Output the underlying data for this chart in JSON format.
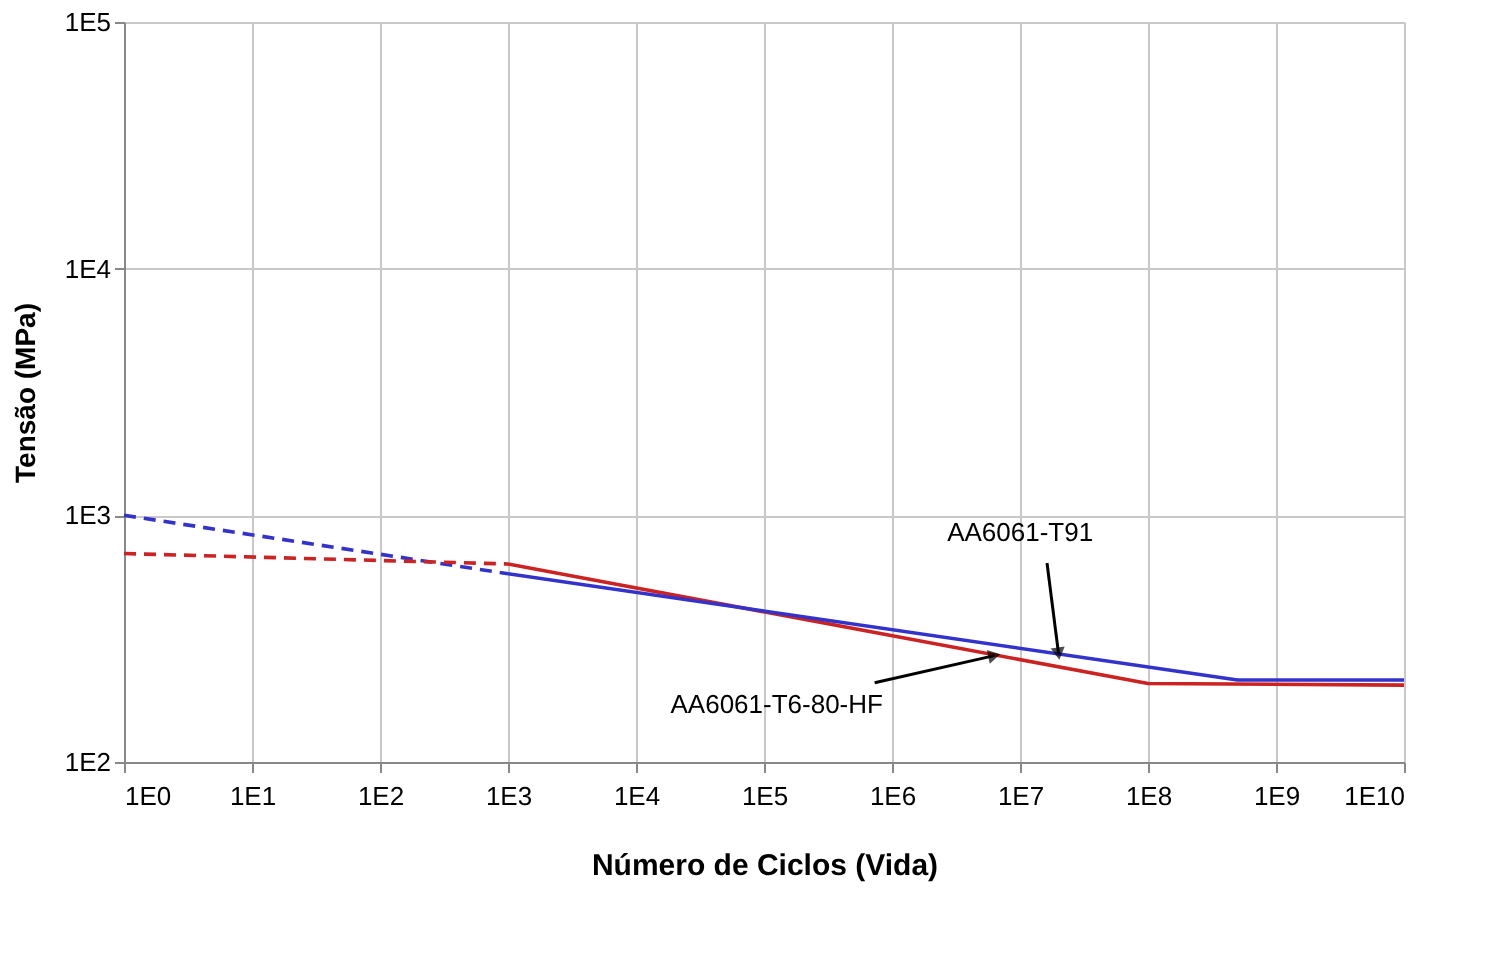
{
  "chart_data": {
    "type": "line",
    "xlabel": "Número de Ciclos (Vida)",
    "ylabel": "Tensão (MPa)",
    "log": "xy",
    "grid": true,
    "marker": "none",
    "xlim": [
      1,
      10000000000
    ],
    "ylim": [
      100,
      100000
    ],
    "xticks": [
      {
        "value": 1,
        "label": "1E0"
      },
      {
        "value": 10,
        "label": "1E1"
      },
      {
        "value": 100,
        "label": "1E2"
      },
      {
        "value": 1000,
        "label": "1E3"
      },
      {
        "value": 10000,
        "label": "1E4"
      },
      {
        "value": 100000,
        "label": "1E5"
      },
      {
        "value": 1000000,
        "label": "1E6"
      },
      {
        "value": 10000000,
        "label": "1E7"
      },
      {
        "value": 100000000,
        "label": "1E8"
      },
      {
        "value": 1000000000,
        "label": "1E9"
      },
      {
        "value": 10000000000,
        "label": "1E10"
      }
    ],
    "yticks": [
      {
        "value": 100,
        "label": "1E2"
      },
      {
        "value": 1000,
        "label": "1E3"
      },
      {
        "value": 10000,
        "label": "1E4"
      },
      {
        "value": 100000,
        "label": "1E5"
      }
    ],
    "series": [
      {
        "color": "#3333cc",
        "line_style": "dashed",
        "x": [
          1,
          1000
        ],
        "values": [
          1000,
          580
        ]
      },
      {
        "color": "#cc2222",
        "line_style": "dashed",
        "x": [
          1,
          1000
        ],
        "values": [
          700,
          635
        ]
      },
      {
        "color": "#cc2222",
        "line_style": "solid",
        "x": [
          1000,
          100000000,
          10000000000
        ],
        "values": [
          635,
          208,
          205
        ]
      },
      {
        "color": "#3333cc",
        "line_style": "solid",
        "x": [
          1000,
          500000000,
          10000000000
        ],
        "values": [
          580,
          215,
          215
        ]
      }
    ],
    "annotations": [
      {
        "text": "AA6061-T91",
        "x": 20000000,
        "y": 275
      },
      {
        "text": "AA6061-T6-80-HF",
        "x": 6300000,
        "y": 270
      }
    ]
  }
}
